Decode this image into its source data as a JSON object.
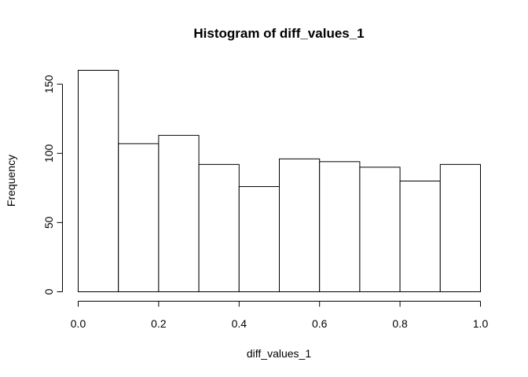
{
  "chart_data": {
    "type": "bar",
    "title": "Histogram of diff_values_1",
    "xlabel": "diff_values_1",
    "ylabel": "Frequency",
    "bin_edges": [
      0.0,
      0.1,
      0.2,
      0.3,
      0.4,
      0.5,
      0.6,
      0.7,
      0.8,
      0.9,
      1.0
    ],
    "values": [
      160,
      107,
      113,
      92,
      76,
      96,
      94,
      90,
      80,
      92
    ],
    "xlim": [
      0.0,
      1.0
    ],
    "ylim": [
      0,
      160
    ],
    "x_ticks": [
      0.0,
      0.2,
      0.4,
      0.6,
      0.8,
      1.0
    ],
    "x_tick_labels": [
      "0.0",
      "0.2",
      "0.4",
      "0.6",
      "0.8",
      "1.0"
    ],
    "y_ticks": [
      0,
      50,
      100,
      150
    ],
    "y_tick_labels": [
      "0",
      "50",
      "100",
      "150"
    ],
    "grid": false,
    "bar_fill": "#ffffff",
    "bar_stroke": "#000000"
  }
}
